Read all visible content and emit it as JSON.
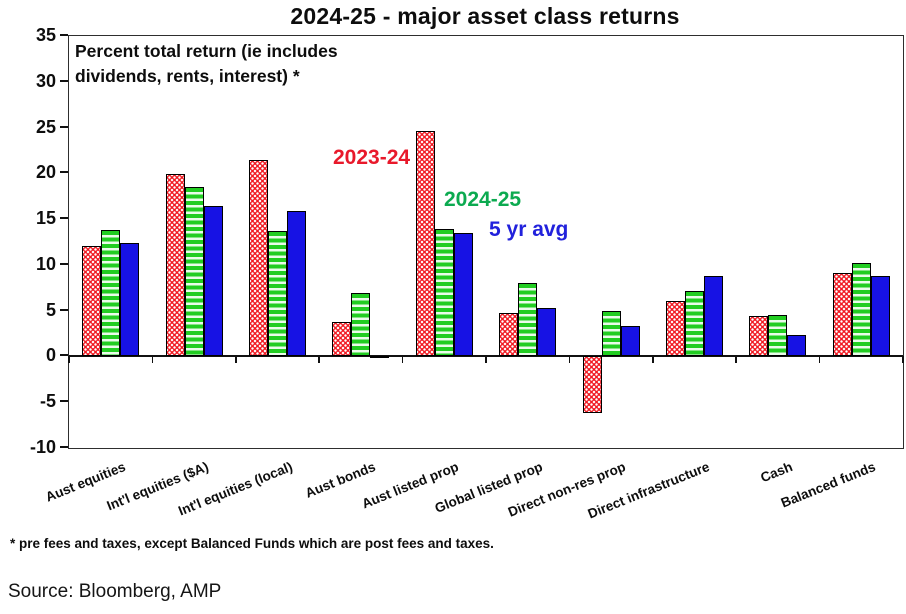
{
  "title": "2024-25 - major asset class returns",
  "annotation": [
    "Percent total return (ie includes",
    "dividends, rents, interest) *"
  ],
  "legend": [
    {
      "label": "2023-24",
      "color": "#e8192b"
    },
    {
      "label": "2024-25",
      "color": "#0caa50"
    },
    {
      "label": "5 yr avg",
      "color": "#2121dc"
    }
  ],
  "footnote": "* pre fees and taxes, except Balanced Funds which are post fees and taxes.",
  "source": "Source: Bloomberg, AMP",
  "chart_data": {
    "type": "bar",
    "title": "2024-25 - major asset class returns",
    "ylabel": "Percent total return (ie includes dividends, rents, interest)",
    "categories": [
      "Aust equities",
      "Int'l equities ($A)",
      "Int'l equities (local)",
      "Aust bonds",
      "Aust listed prop",
      "Global listed prop",
      "Direct non-res prop",
      "Direct infrastructure",
      "Cash",
      "Balanced funds"
    ],
    "series": [
      {
        "name": "2023-24",
        "color": "#f01b23",
        "pattern": "dots",
        "values": [
          12.1,
          19.9,
          21.5,
          3.8,
          24.6,
          4.7,
          -6.2,
          6.1,
          4.4,
          9.1
        ]
      },
      {
        "name": "2024-25",
        "color": "#22cd22",
        "pattern": "hstripes",
        "values": [
          13.8,
          18.5,
          13.7,
          6.9,
          13.9,
          8.0,
          5.0,
          7.1,
          4.5,
          10.2
        ]
      },
      {
        "name": "5 yr avg",
        "color": "#1712e4",
        "pattern": "solid",
        "values": [
          12.4,
          16.4,
          15.9,
          0.1,
          13.5,
          5.3,
          3.3,
          8.8,
          2.3,
          8.8
        ]
      }
    ],
    "ylim": [
      -10,
      35
    ],
    "ytick_step": 5,
    "grid": false,
    "legend_position": "inside-top-middle"
  }
}
